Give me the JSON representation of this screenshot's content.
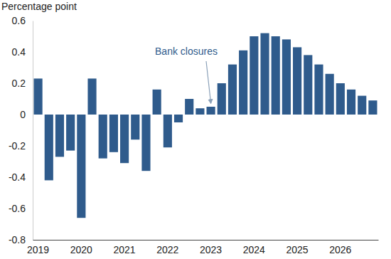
{
  "chart_data": {
    "type": "bar",
    "y_label": "Percentage point",
    "annotation": "Bank closures",
    "categories": [
      "2019",
      null,
      null,
      null,
      "2020",
      null,
      null,
      null,
      "2021",
      null,
      null,
      null,
      "2022",
      null,
      null,
      null,
      "2023",
      null,
      null,
      null,
      "2024",
      null,
      null,
      null,
      "2025",
      null,
      null,
      null,
      "2026",
      null,
      null,
      null
    ],
    "values": [
      0.23,
      -0.42,
      -0.27,
      -0.23,
      -0.66,
      0.23,
      -0.28,
      -0.24,
      -0.31,
      -0.16,
      -0.36,
      0.16,
      -0.21,
      -0.05,
      0.1,
      0.04,
      0.05,
      0.2,
      0.32,
      0.41,
      0.5,
      0.52,
      0.5,
      0.48,
      0.43,
      0.38,
      0.32,
      0.26,
      0.2,
      0.16,
      0.12,
      0.09
    ],
    "color": "#2f5b8c",
    "ylim": [
      -0.8,
      0.6
    ],
    "yticks": [
      -0.8,
      -0.6,
      -0.4,
      -0.2,
      0,
      0.2,
      0.4,
      0.6
    ],
    "grid": false
  }
}
